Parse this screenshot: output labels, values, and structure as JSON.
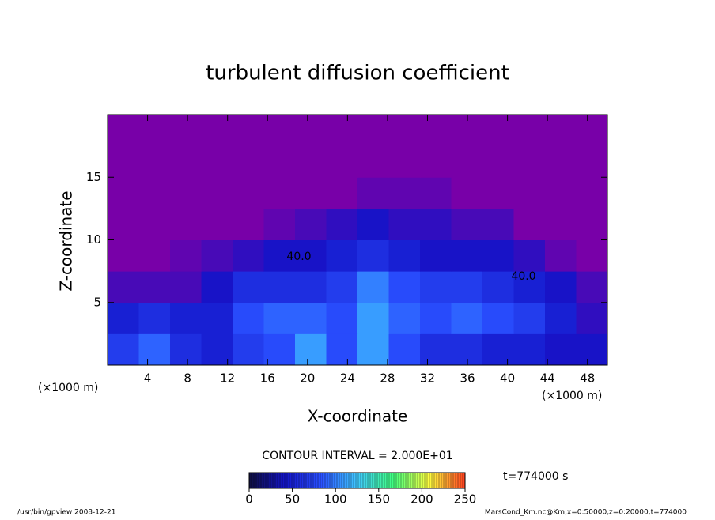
{
  "chart_data": {
    "type": "contour",
    "title": "turbulent diffusion coefficient",
    "xlabel": "X-coordinate",
    "ylabel": "Z-coordinate",
    "x_unit": "(×1000 m)",
    "xlim": [
      0,
      50
    ],
    "ylim": [
      0,
      20
    ],
    "xticks": [
      4,
      8,
      12,
      16,
      20,
      24,
      28,
      32,
      36,
      40,
      44,
      48
    ],
    "yticks": [
      5,
      10,
      15
    ],
    "z": [
      [
        70,
        90,
        60,
        50,
        70,
        80,
        110,
        80,
        110,
        80,
        60,
        60,
        50,
        50,
        40,
        40
      ],
      [
        50,
        60,
        50,
        50,
        80,
        90,
        90,
        80,
        110,
        90,
        80,
        90,
        80,
        70,
        50,
        30
      ],
      [
        20,
        20,
        20,
        40,
        60,
        60,
        60,
        70,
        100,
        80,
        70,
        70,
        60,
        50,
        40,
        20
      ],
      [
        0,
        0,
        10,
        20,
        30,
        40,
        40,
        50,
        60,
        50,
        40,
        40,
        40,
        30,
        10,
        0
      ],
      [
        0,
        0,
        0,
        0,
        0,
        10,
        20,
        30,
        40,
        30,
        30,
        20,
        20,
        0,
        0,
        0
      ],
      [
        0,
        0,
        0,
        0,
        0,
        0,
        0,
        0,
        10,
        10,
        10,
        0,
        0,
        0,
        0,
        0
      ],
      [
        0,
        0,
        0,
        0,
        0,
        0,
        0,
        0,
        0,
        0,
        0,
        0,
        0,
        0,
        0,
        0
      ],
      [
        0,
        0,
        0,
        0,
        0,
        0,
        0,
        0,
        0,
        0,
        0,
        0,
        0,
        0,
        0,
        0
      ]
    ],
    "contour_labels": [
      {
        "value": 40,
        "label": "40.0"
      },
      {
        "value": 40,
        "label": "40.0"
      }
    ],
    "contour_interval_text": "CONTOUR INTERVAL = 2.000E+01",
    "time_text": "t=774000 s",
    "colormap": [
      "#7800a8",
      "#1414c8",
      "#2a50ff",
      "#40c8ff",
      "#40ff80",
      "#ffff40",
      "#ff4020"
    ],
    "clim": [
      0,
      250
    ],
    "cticks": [
      0,
      50,
      100,
      150,
      200,
      250
    ],
    "footer_left": "/usr/bin/gpview   2008-12-21",
    "footer_right": "MarsCond_Km.nc@Km,x=0:50000,z=0:20000,t=774000"
  }
}
